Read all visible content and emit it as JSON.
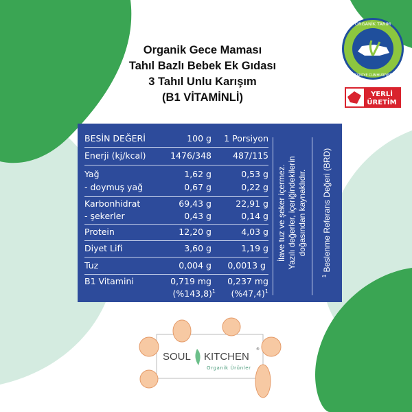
{
  "title": {
    "lines": [
      "Organik Gece Maması",
      "Tahıl Bazlı Bebek Ek Gıdası",
      "3 Tahıl Unlu Karışım",
      "(B1 VİTAMİNLİ)"
    ]
  },
  "badges": {
    "seal_text_top": "ORGANİK TARIM",
    "seal_text_bottom": "TÜRKİYE CUMHURİYETİ",
    "yerli_line1": "YERLİ",
    "yerli_line2": "ÜRETİM"
  },
  "table": {
    "header": [
      "BESİN DEĞERİ",
      "100 g",
      "1 Porsiyon"
    ],
    "rows": [
      [
        "Enerji (kj/kcal)",
        "1476/348",
        "487/115"
      ],
      [
        "Yağ",
        "1,62 g",
        "0,53 g"
      ],
      [
        "- doymuş yağ",
        "0,67 g",
        "0,22 g"
      ],
      [
        "Karbonhidrat",
        "69,43 g",
        "22,91 g"
      ],
      [
        "- şekerler",
        "0,43 g",
        "0,14 g"
      ],
      [
        "Protein",
        "12,20 g",
        "4,03 g"
      ],
      [
        "Diyet Lifi",
        "3,60 g",
        "1,19 g"
      ],
      [
        "Tuz",
        "0,004 g",
        "0,0013 g"
      ],
      [
        "B1 Vitamini",
        "0,719 mg",
        "0,237 mg"
      ]
    ],
    "b1_percent": [
      "(%143,8)",
      "(%47,4)"
    ],
    "footnote_mark": "1",
    "note_lines": [
      "İlave tuz ve şeker içermez.",
      "Yazılı değerler, içeriğindekilerin",
      "doğasından kaynaklıdır."
    ],
    "footnote": "Beslenme Referans Değeri (BRD)"
  },
  "logo": {
    "brand_left": "SOUL",
    "brand_right": "KITCHEN",
    "registered": "®",
    "tagline": "Organik Ürünler"
  },
  "colors": {
    "panel": "#2d4b9b",
    "dark_green": "#3aa553",
    "mint": "#d4ebe0",
    "seal_green": "#8cc63f",
    "seal_blue": "#1f4f9c",
    "yerli_red": "#d9232e"
  }
}
